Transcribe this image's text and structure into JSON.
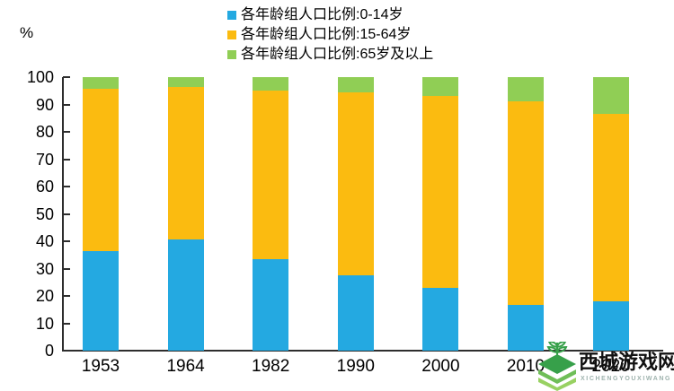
{
  "chart_data": {
    "type": "bar",
    "stacked": true,
    "title": "",
    "ylabel": "%",
    "xlabel": "",
    "ylim": [
      0,
      100
    ],
    "yticks": [
      0,
      10,
      20,
      30,
      40,
      50,
      60,
      70,
      80,
      90,
      100
    ],
    "grid": false,
    "legend_position": "top-center",
    "categories": [
      "1953",
      "1964",
      "1982",
      "1990",
      "2000",
      "2010",
      "2020"
    ],
    "series": [
      {
        "name": "各年龄组人口比例:0-14岁",
        "color": "#24A9E1",
        "values": [
          36.3,
          40.7,
          33.6,
          27.7,
          22.9,
          16.6,
          18.0
        ]
      },
      {
        "name": "各年龄组人口比例:15-64岁",
        "color": "#FBBB10",
        "values": [
          59.3,
          55.7,
          61.5,
          66.7,
          70.1,
          74.5,
          68.5
        ]
      },
      {
        "name": "各年龄组人口比例:65岁及以上",
        "color": "#90CE55",
        "values": [
          4.4,
          3.6,
          4.9,
          5.6,
          7.0,
          8.9,
          13.5
        ]
      }
    ]
  },
  "axis": {
    "unit_label": "%"
  },
  "watermark": {
    "site_name": "西城游戏网",
    "site_latin": "XICHENGYOUXIWANG",
    "logo_green_dark": "#37a04a",
    "logo_green_mid": "#6fbe58",
    "logo_green_light": "#98d162"
  }
}
